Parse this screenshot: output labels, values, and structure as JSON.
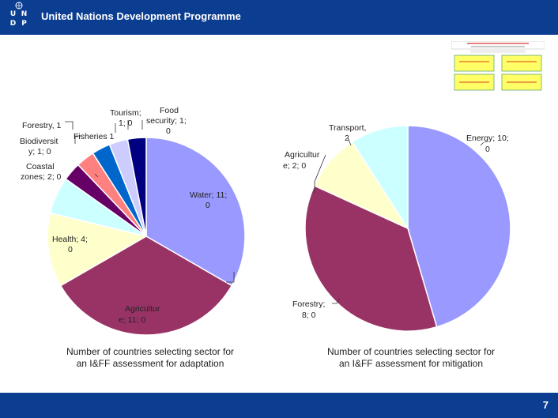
{
  "header": {
    "org_name": "United Nations Development Programme",
    "logo_letters": [
      "U",
      "N",
      "D",
      "P"
    ],
    "bg_color": "#0b3d91"
  },
  "footer": {
    "page_number": "7"
  },
  "chart_data": [
    {
      "type": "pie",
      "title": "Number of countries selecting sector for an I&FF assessment for adaptation",
      "slices": [
        {
          "name": "Water",
          "value": 11,
          "count": 0,
          "color": "#9999ff",
          "label": "Water; 11; 0"
        },
        {
          "name": "Agriculture",
          "value": 11,
          "count": 0,
          "color": "#993366",
          "label": "Agricultur e; 11; 0"
        },
        {
          "name": "Health",
          "value": 4,
          "count": 0,
          "color": "#ffffcc",
          "label": "Health; 4; 0"
        },
        {
          "name": "Coastal zones",
          "value": 2,
          "count": 0,
          "color": "#ccffff",
          "label": "Coastal zones; 2; 0"
        },
        {
          "name": "Biodiversity",
          "value": 1,
          "count": 0,
          "color": "#660066",
          "label": "Biodiversit y; 1; 0"
        },
        {
          "name": "Forestry",
          "value": 1,
          "count": 0,
          "color": "#ff8080",
          "label": "Forestry, 1"
        },
        {
          "name": "Fisheries",
          "value": 1,
          "count": 0,
          "color": "#0066cc",
          "label": "Fisheries 1"
        },
        {
          "name": "Tourism",
          "value": 1,
          "count": 0,
          "color": "#ccccff",
          "label": "Tourism; 1; 0"
        },
        {
          "name": "Food security",
          "value": 1,
          "count": 0,
          "color": "#000080",
          "label": "Food security; 1; 0"
        }
      ]
    },
    {
      "type": "pie",
      "title": "Number of countries selecting sector for an I&FF assessment for mitigation",
      "slices": [
        {
          "name": "Energy",
          "value": 10,
          "count": 0,
          "color": "#9999ff",
          "label": "Energy; 10; 0"
        },
        {
          "name": "Forestry",
          "value": 8,
          "count": 0,
          "color": "#993366",
          "label": "Forestry; 8; 0"
        },
        {
          "name": "Agriculture",
          "value": 2,
          "count": 0,
          "color": "#ffffcc",
          "label": "Agricultur e; 2; 0"
        },
        {
          "name": "Transport",
          "value": 2,
          "count": 0,
          "color": "#ccffff",
          "label": "Transport, 2"
        }
      ]
    }
  ],
  "labels": {
    "adapt": {
      "tourism": [
        "Tourism;",
        "1; 0"
      ],
      "food": [
        "Food",
        "security; 1;",
        "0"
      ],
      "forestry": [
        "Forestry, 1"
      ],
      "fisheries": [
        "Fisheries 1"
      ],
      "biodiv": [
        "Biodiversit",
        "y; 1; 0"
      ],
      "coastal": [
        "Coastal",
        "zones; 2; 0"
      ],
      "water": [
        "Water; 11;",
        "0"
      ],
      "health": [
        "Health; 4;",
        "0"
      ],
      "agri": [
        "Agricultur",
        "e; 11; 0"
      ]
    },
    "mitig": {
      "transport": [
        "Transport,",
        "2"
      ],
      "energy": [
        "Energy; 10;",
        "0"
      ],
      "agri": [
        "Agricultur",
        "e; 2; 0"
      ],
      "forestry": [
        "Forestry;",
        "8; 0"
      ]
    }
  },
  "captions": {
    "adapt": [
      "Number of countries selecting sector for",
      "an I&FF assessment for adaptation"
    ],
    "mitig": [
      "Number of countries selecting sector for",
      "an I&FF assessment for mitigation"
    ]
  }
}
